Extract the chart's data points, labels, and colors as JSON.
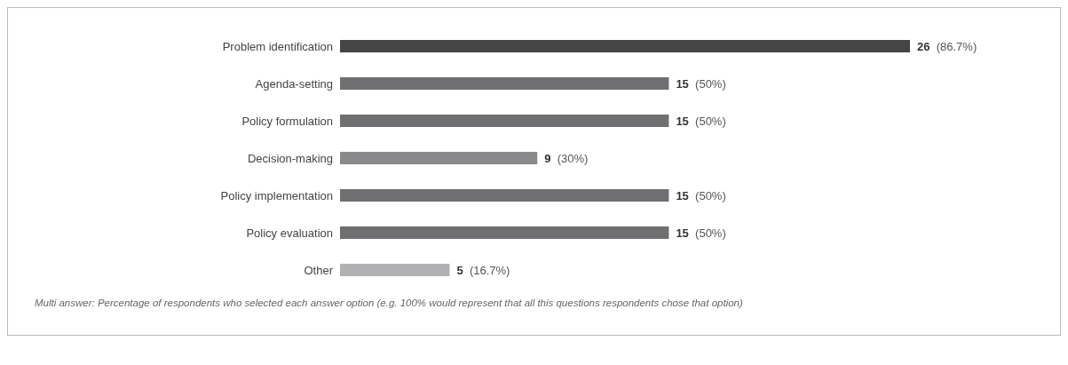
{
  "chart_data": {
    "type": "bar",
    "orientation": "horizontal",
    "categories": [
      "Problem identification",
      "Agenda-setting",
      "Policy formulation",
      "Decision-making",
      "Policy implementation",
      "Policy evaluation",
      "Other"
    ],
    "values": [
      26,
      15,
      15,
      9,
      15,
      15,
      5
    ],
    "colors": [
      "#454545",
      "#6f6f71",
      "#6f6f71",
      "#8a8a8c",
      "#6f6f71",
      "#6f6f71",
      "#b1b1b3"
    ],
    "value_labels": [
      "26 (86.7%)",
      "15 (50%)",
      "15 (50%)",
      "9 (30%)",
      "15 (50%)",
      "15 (50%)",
      "5 (16.7%)"
    ],
    "annotations": [
      "Multi answer: Percentage of respondents who selected each answer option (e.g. 100% would represent that all this questions respondents chose that option)"
    ]
  }
}
